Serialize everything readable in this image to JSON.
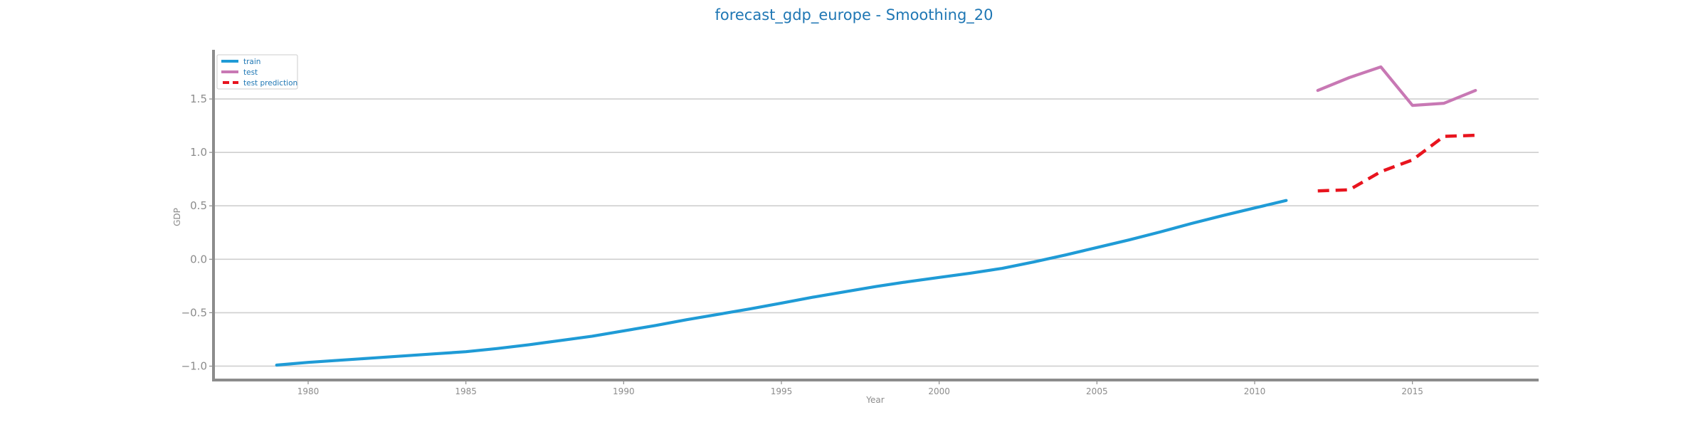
{
  "chart_data": {
    "type": "line",
    "title": "forecast_gdp_europe - Smoothing_20",
    "xlabel": "Year",
    "ylabel": "GDP",
    "xlim": [
      1977,
      2019
    ],
    "ylim": [
      -1.13,
      1.96
    ],
    "x_ticks": [
      1980,
      1985,
      1990,
      1995,
      2000,
      2005,
      2010,
      2015
    ],
    "y_ticks": [
      -1.0,
      -0.5,
      0.0,
      0.5,
      1.0,
      1.5
    ],
    "y_tick_labels": [
      "−1.0",
      "−0.5",
      "0.0",
      "0.5",
      "1.0",
      "1.5"
    ],
    "grid": "horizontal",
    "legend_position": "top-left",
    "series": [
      {
        "name": "train",
        "color": "#1f9bd6",
        "style": "solid",
        "x": [
          1979,
          1980,
          1981,
          1982,
          1983,
          1984,
          1985,
          1986,
          1987,
          1988,
          1989,
          1990,
          1991,
          1992,
          1993,
          1994,
          1995,
          1996,
          1997,
          1998,
          1999,
          2000,
          2001,
          2002,
          2003,
          2004,
          2005,
          2006,
          2007,
          2008,
          2009,
          2010,
          2011
        ],
        "y": [
          -0.99,
          -0.965,
          -0.945,
          -0.925,
          -0.905,
          -0.885,
          -0.865,
          -0.835,
          -0.8,
          -0.76,
          -0.72,
          -0.67,
          -0.62,
          -0.565,
          -0.515,
          -0.465,
          -0.41,
          -0.355,
          -0.305,
          -0.255,
          -0.21,
          -0.17,
          -0.13,
          -0.085,
          -0.025,
          0.04,
          0.11,
          0.18,
          0.255,
          0.335,
          0.41,
          0.48,
          0.55
        ]
      },
      {
        "name": "test",
        "color": "#c878b4",
        "style": "solid",
        "x": [
          2012,
          2013,
          2014,
          2015,
          2016,
          2017
        ],
        "y": [
          1.58,
          1.7,
          1.8,
          1.44,
          1.46,
          1.58
        ]
      },
      {
        "name": "test prediction",
        "color": "#e8141e",
        "style": "dashed",
        "x": [
          2012,
          2013,
          2014,
          2015,
          2016,
          2017
        ],
        "y": [
          0.64,
          0.65,
          0.82,
          0.93,
          1.15,
          1.16
        ]
      }
    ]
  }
}
